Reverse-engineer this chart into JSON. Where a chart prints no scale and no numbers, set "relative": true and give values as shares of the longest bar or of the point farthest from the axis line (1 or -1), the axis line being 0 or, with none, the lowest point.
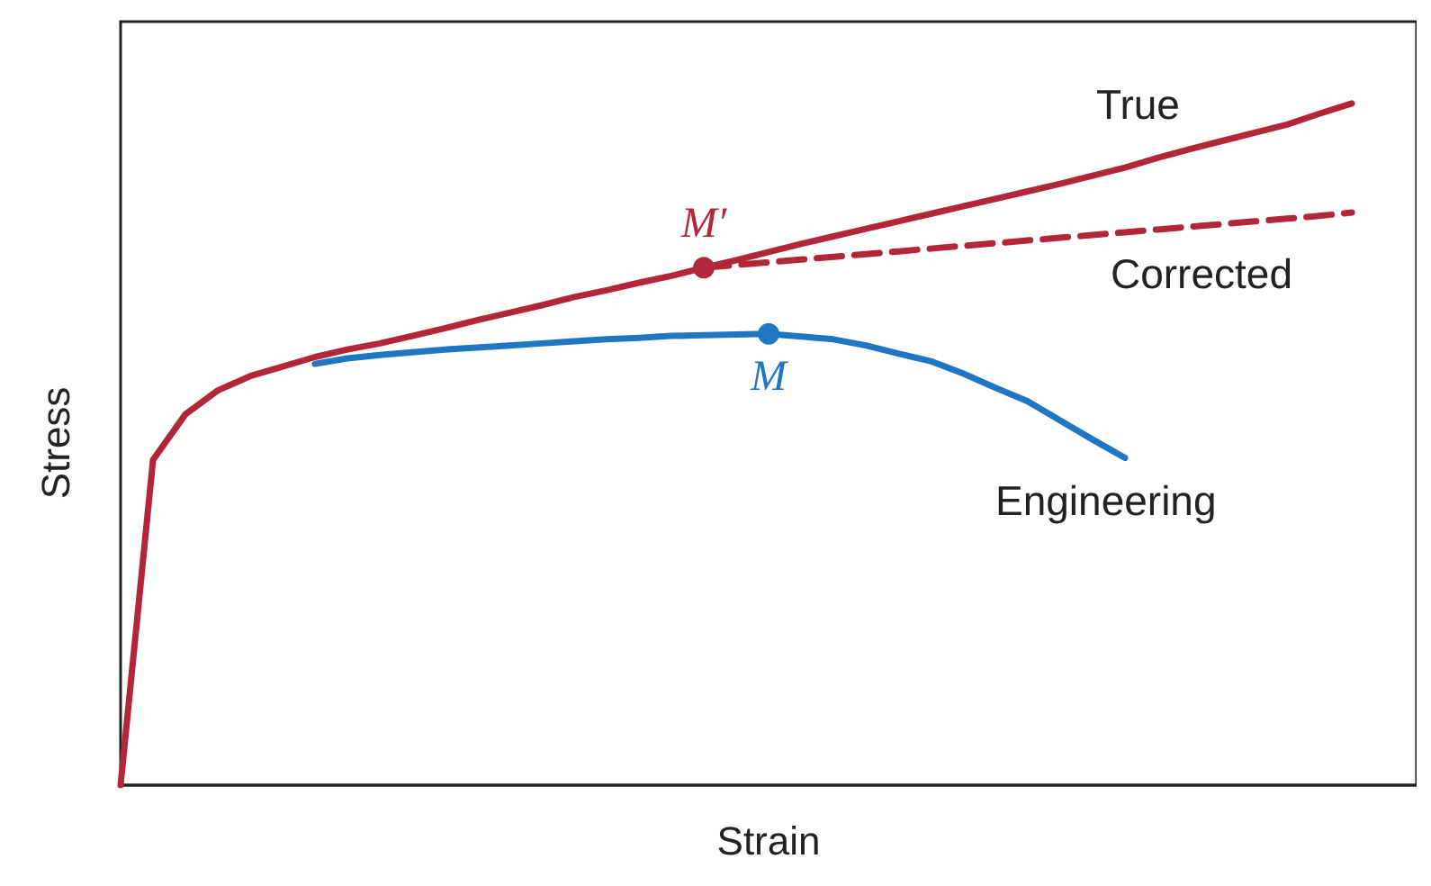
{
  "chart_data": {
    "type": "line",
    "relative": true,
    "xlabel": "Strain",
    "ylabel": "Stress",
    "tick_labels": false,
    "grid": false,
    "legend": false,
    "marker": "none",
    "categories": [
      null,
      null,
      null,
      null,
      null,
      null,
      null,
      null,
      null,
      null,
      null,
      null,
      null,
      null,
      null,
      null,
      null,
      null,
      null,
      null,
      null,
      null,
      null,
      null,
      null,
      null,
      null,
      null,
      null,
      null,
      null,
      null,
      null,
      null,
      null,
      null,
      null,
      null,
      null,
      null,
      null
    ],
    "series": [
      {
        "name": "Engineering",
        "color": "#1f77c4",
        "line_style": "solid",
        "values": [
          null,
          null,
          null,
          null,
          null,
          null,
          0.618,
          0.626,
          0.631,
          0.635,
          0.639,
          0.642,
          0.645,
          0.648,
          0.651,
          0.654,
          0.656,
          0.659,
          0.66,
          0.661,
          0.662,
          0.658,
          0.654,
          0.645,
          0.633,
          0.622,
          0.604,
          0.583,
          0.563,
          0.535,
          0.507,
          0.48,
          null,
          null,
          null,
          null,
          null,
          null,
          null,
          null,
          null
        ]
      },
      {
        "name": "True",
        "color": "#b3263a",
        "line_style": "solid",
        "values": [
          0,
          0.477,
          0.544,
          0.579,
          0.6,
          0.614,
          0.628,
          0.639,
          0.648,
          0.659,
          0.67,
          0.682,
          0.693,
          0.704,
          0.716,
          0.726,
          0.737,
          0.747,
          0.759,
          0.77,
          0.782,
          0.794,
          0.805,
          0.816,
          0.827,
          0.838,
          0.849,
          0.86,
          0.871,
          0.882,
          0.894,
          0.906,
          0.92,
          0.933,
          0.945,
          0.957,
          0.969,
          0.985,
          1,
          null,
          null
        ]
      },
      {
        "name": "Corrected",
        "color": "#b3263a",
        "line_style": "dashed",
        "values": [
          null,
          null,
          null,
          null,
          null,
          null,
          null,
          null,
          null,
          null,
          null,
          null,
          null,
          null,
          null,
          null,
          null,
          null,
          0.759,
          0.763,
          0.767,
          0.771,
          0.775,
          0.779,
          0.783,
          0.787,
          0.791,
          0.795,
          0.799,
          0.803,
          0.807,
          0.811,
          0.815,
          0.819,
          0.823,
          0.827,
          0.831,
          0.835,
          0.84,
          null,
          null
        ]
      }
    ],
    "annotations": [
      {
        "text": "M′",
        "y": 0.759
      },
      {
        "text": "M",
        "y": 0.662
      }
    ]
  }
}
